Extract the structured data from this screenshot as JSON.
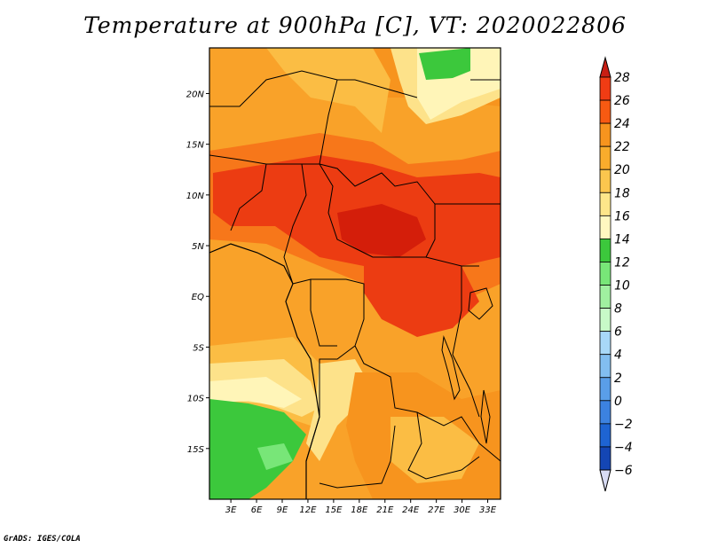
{
  "title": "Temperature at 900hPa [C], VT: 2020022806",
  "credit": "GrADS: IGES/COLA",
  "map": {
    "lon_range": [
      0.5,
      34.5
    ],
    "lat_range": [
      -20,
      24.5
    ],
    "y_ticks": [
      {
        "lat": 20,
        "label": "20N"
      },
      {
        "lat": 15,
        "label": "15N"
      },
      {
        "lat": 10,
        "label": "10N"
      },
      {
        "lat": 5,
        "label": "5N"
      },
      {
        "lat": 0,
        "label": "EQ"
      },
      {
        "lat": -5,
        "label": "5S"
      },
      {
        "lat": -10,
        "label": "10S"
      },
      {
        "lat": -15,
        "label": "15S"
      }
    ],
    "x_ticks": [
      {
        "lon": 3,
        "label": "3E"
      },
      {
        "lon": 6,
        "label": "6E"
      },
      {
        "lon": 9,
        "label": "9E"
      },
      {
        "lon": 12,
        "label": "12E"
      },
      {
        "lon": 15,
        "label": "15E"
      },
      {
        "lon": 18,
        "label": "18E"
      },
      {
        "lon": 21,
        "label": "21E"
      },
      {
        "lon": 24,
        "label": "24E"
      },
      {
        "lon": 27,
        "label": "27E"
      },
      {
        "lon": 30,
        "label": "30E"
      },
      {
        "lon": 33,
        "label": "33E"
      }
    ]
  },
  "colorbar": {
    "levels": [
      {
        "value": 28,
        "label": "28",
        "color": "#f03c14"
      },
      {
        "value": 26,
        "label": "26",
        "color": "#f75a12"
      },
      {
        "value": 24,
        "label": "24",
        "color": "#f7941e"
      },
      {
        "value": 22,
        "label": "22",
        "color": "#f9ac2c"
      },
      {
        "value": 20,
        "label": "20",
        "color": "#fbc64e"
      },
      {
        "value": 18,
        "label": "18",
        "color": "#fde68a"
      },
      {
        "value": 16,
        "label": "16",
        "color": "#fff8c0"
      },
      {
        "value": 14,
        "label": "14",
        "color": "#3cc83c"
      },
      {
        "value": 12,
        "label": "12",
        "color": "#78e678"
      },
      {
        "value": 10,
        "label": "10",
        "color": "#a0f0a0"
      },
      {
        "value": 8,
        "label": "8",
        "color": "#c8fac8"
      },
      {
        "value": 6,
        "label": "6",
        "color": "#a8d8f8"
      },
      {
        "value": 4,
        "label": "4",
        "color": "#82bef0"
      },
      {
        "value": 2,
        "label": "2",
        "color": "#5a9ee8"
      },
      {
        "value": 0,
        "label": "0",
        "color": "#3c82e0"
      },
      {
        "value": -2,
        "label": "−2",
        "color": "#1e64d2"
      },
      {
        "value": -4,
        "label": "−4",
        "color": "#1446b4"
      },
      {
        "value": -6,
        "label": "−6",
        "color": "#0a1e8c"
      }
    ],
    "overflow_top_color": "#c81e14",
    "underflow_bottom_color": "#d8dcf4"
  },
  "field_colors": {
    "hot_core": "#d41e0a",
    "very_warm": "#ec3c12",
    "warm": "#f7771a",
    "mid": "#f9a229",
    "mild": "#fbbd44",
    "cool": "#fde28a",
    "pale": "#fff5b8",
    "green": "#3cc83c",
    "light_green": "#78e678"
  }
}
